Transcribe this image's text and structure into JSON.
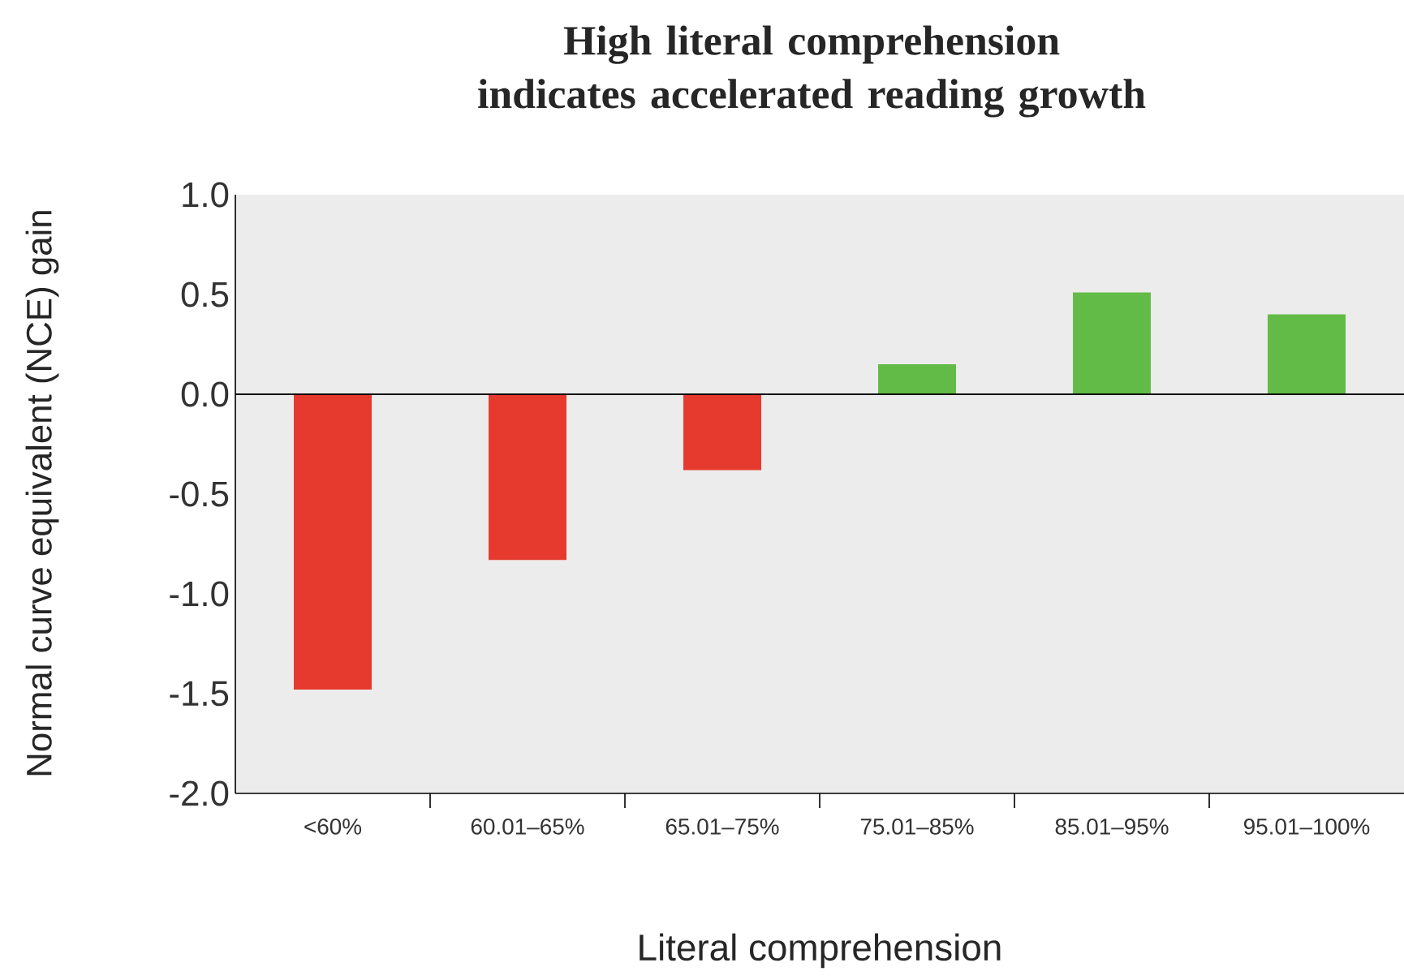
{
  "chart_data": {
    "type": "bar",
    "title": "High literal comprehension indicates accelerated reading growth",
    "xlabel": "Literal comprehension",
    "ylabel": "Normal curve equivalent (NCE) gain",
    "categories": [
      "<60%",
      "60.01–65%",
      "65.01–75%",
      "75.01–85%",
      "85.01–95%",
      "95.01–100%"
    ],
    "values": [
      -1.48,
      -0.83,
      -0.38,
      0.15,
      0.51,
      0.4
    ],
    "colors": [
      "#e63a2e",
      "#e63a2e",
      "#e63a2e",
      "#62bb46",
      "#62bb46",
      "#62bb46"
    ],
    "ylim": [
      -2,
      1
    ],
    "yticks": [
      {
        "value": -2,
        "label": "-2.0"
      },
      {
        "value": -1.5,
        "label": "-1.5"
      },
      {
        "value": -1,
        "label": "-1.0"
      },
      {
        "value": -0.5,
        "label": "-0.5"
      },
      {
        "value": 0,
        "label": "0.0"
      },
      {
        "value": 0.5,
        "label": "0.5"
      },
      {
        "value": 1,
        "label": "1.0"
      }
    ],
    "ref_lines": [
      {
        "axis": "y",
        "value": 0,
        "color": "#000000"
      }
    ],
    "grid": false
  }
}
